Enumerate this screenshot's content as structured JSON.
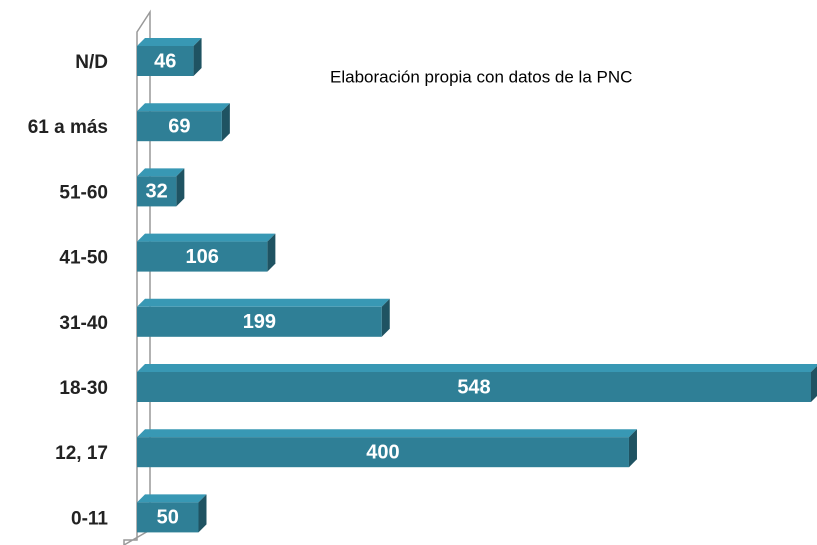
{
  "chart_data": {
    "type": "bar",
    "orientation": "horizontal",
    "annotation": "Elaboración propia con datos de la PNC",
    "categories": [
      "N/D",
      "61 a más",
      "51-60",
      "41-50",
      "31-40",
      "18-30",
      "12,  17",
      "0-11"
    ],
    "values": [
      46,
      69,
      32,
      106,
      199,
      548,
      400,
      50
    ],
    "color": "#2f7f96"
  }
}
